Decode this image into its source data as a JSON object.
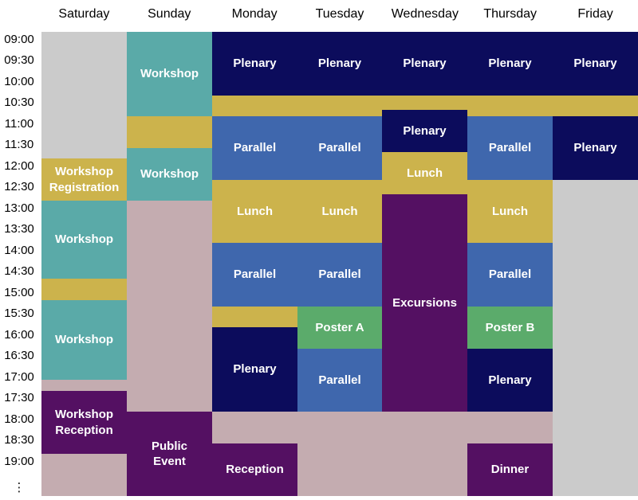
{
  "colors": {
    "plenary": "#0c0c5c",
    "parallel": "#3f67ad",
    "lunch": "#ccb34c",
    "workshop": "#5aaaa8",
    "poster": "#5bab6b",
    "purple": "#541062",
    "free": "#c4acb0",
    "empty": "#cbcbcb"
  },
  "days": [
    "Saturday",
    "Sunday",
    "Monday",
    "Tuesday",
    "Wednesday",
    "Thursday",
    "Friday"
  ],
  "times": [
    "09:00",
    "09:30",
    "10:00",
    "10:30",
    "11:00",
    "11:30",
    "12:00",
    "12:30",
    "13:00",
    "13:30",
    "14:00",
    "14:30",
    "15:00",
    "15:30",
    "16:00",
    "16:30",
    "17:00",
    "17:30",
    "18:00",
    "18:30",
    "19:00"
  ],
  "continuation": "⋮",
  "events": [
    {
      "day": 0,
      "start": 0,
      "end": 6,
      "type": "empty",
      "label": ""
    },
    {
      "day": 0,
      "start": 6,
      "end": 8,
      "type": "lunch",
      "label": "Workshop\nRegistration"
    },
    {
      "day": 0,
      "start": 8,
      "end": 11.7,
      "type": "workshop",
      "label": "Workshop"
    },
    {
      "day": 0,
      "start": 11.7,
      "end": 12.7,
      "type": "lunch",
      "label": ""
    },
    {
      "day": 0,
      "start": 12.7,
      "end": 16.5,
      "type": "workshop",
      "label": "Workshop"
    },
    {
      "day": 0,
      "start": 16.5,
      "end": 17,
      "type": "free",
      "label": ""
    },
    {
      "day": 0,
      "start": 17,
      "end": 20,
      "type": "purple",
      "label": "Workshop\nReception"
    },
    {
      "day": 0,
      "start": 20,
      "end": 22,
      "type": "free",
      "label": ""
    },
    {
      "day": 1,
      "start": 0,
      "end": 4,
      "type": "workshop",
      "label": "Workshop"
    },
    {
      "day": 1,
      "start": 4,
      "end": 5.5,
      "type": "lunch",
      "label": ""
    },
    {
      "day": 1,
      "start": 5.5,
      "end": 8,
      "type": "workshop",
      "label": "Workshop"
    },
    {
      "day": 1,
      "start": 8,
      "end": 18,
      "type": "free",
      "label": ""
    },
    {
      "day": 1,
      "start": 18,
      "end": 22,
      "type": "purple",
      "label": "Public\nEvent"
    },
    {
      "day": 2,
      "start": 0,
      "end": 3,
      "type": "plenary",
      "label": "Plenary"
    },
    {
      "day": 2,
      "start": 3,
      "end": 4,
      "type": "lunch",
      "label": ""
    },
    {
      "day": 2,
      "start": 4,
      "end": 7,
      "type": "parallel",
      "label": "Parallel"
    },
    {
      "day": 2,
      "start": 7,
      "end": 10,
      "type": "lunch",
      "label": "Lunch"
    },
    {
      "day": 2,
      "start": 10,
      "end": 13,
      "type": "parallel",
      "label": "Parallel"
    },
    {
      "day": 2,
      "start": 13,
      "end": 14,
      "type": "lunch",
      "label": ""
    },
    {
      "day": 2,
      "start": 14,
      "end": 18,
      "type": "plenary",
      "label": "Plenary"
    },
    {
      "day": 2,
      "start": 18,
      "end": 19.5,
      "type": "free",
      "label": ""
    },
    {
      "day": 2,
      "start": 19.5,
      "end": 22,
      "type": "purple",
      "label": "Reception"
    },
    {
      "day": 3,
      "start": 0,
      "end": 3,
      "type": "plenary",
      "label": "Plenary"
    },
    {
      "day": 3,
      "start": 3,
      "end": 4,
      "type": "lunch",
      "label": ""
    },
    {
      "day": 3,
      "start": 4,
      "end": 7,
      "type": "parallel",
      "label": "Parallel"
    },
    {
      "day": 3,
      "start": 7,
      "end": 10,
      "type": "lunch",
      "label": "Lunch"
    },
    {
      "day": 3,
      "start": 10,
      "end": 13,
      "type": "parallel",
      "label": "Parallel"
    },
    {
      "day": 3,
      "start": 13,
      "end": 15,
      "type": "poster",
      "label": "Poster A"
    },
    {
      "day": 3,
      "start": 15,
      "end": 18,
      "type": "parallel",
      "label": "Parallel"
    },
    {
      "day": 3,
      "start": 18,
      "end": 22,
      "type": "free",
      "label": ""
    },
    {
      "day": 4,
      "start": 0,
      "end": 3,
      "type": "plenary",
      "label": "Plenary"
    },
    {
      "day": 4,
      "start": 3,
      "end": 3.7,
      "type": "lunch",
      "label": ""
    },
    {
      "day": 4,
      "start": 3.7,
      "end": 5.7,
      "type": "plenary",
      "label": "Plenary"
    },
    {
      "day": 4,
      "start": 5.7,
      "end": 7.7,
      "type": "lunch",
      "label": "Lunch"
    },
    {
      "day": 4,
      "start": 7.7,
      "end": 18,
      "type": "purple",
      "label": "Excursions"
    },
    {
      "day": 4,
      "start": 18,
      "end": 22,
      "type": "free",
      "label": ""
    },
    {
      "day": 5,
      "start": 0,
      "end": 3,
      "type": "plenary",
      "label": "Plenary"
    },
    {
      "day": 5,
      "start": 3,
      "end": 4,
      "type": "lunch",
      "label": ""
    },
    {
      "day": 5,
      "start": 4,
      "end": 7,
      "type": "parallel",
      "label": "Parallel"
    },
    {
      "day": 5,
      "start": 7,
      "end": 10,
      "type": "lunch",
      "label": "Lunch"
    },
    {
      "day": 5,
      "start": 10,
      "end": 13,
      "type": "parallel",
      "label": "Parallel"
    },
    {
      "day": 5,
      "start": 13,
      "end": 15,
      "type": "poster",
      "label": "Poster B"
    },
    {
      "day": 5,
      "start": 15,
      "end": 18,
      "type": "plenary",
      "label": "Plenary"
    },
    {
      "day": 5,
      "start": 18,
      "end": 19.5,
      "type": "free",
      "label": ""
    },
    {
      "day": 5,
      "start": 19.5,
      "end": 22,
      "type": "purple",
      "label": "Dinner"
    },
    {
      "day": 6,
      "start": 0,
      "end": 3,
      "type": "plenary",
      "label": "Plenary"
    },
    {
      "day": 6,
      "start": 3,
      "end": 4,
      "type": "lunch",
      "label": ""
    },
    {
      "day": 6,
      "start": 4,
      "end": 7,
      "type": "plenary",
      "label": "Plenary"
    },
    {
      "day": 6,
      "start": 7,
      "end": 22,
      "type": "empty",
      "label": ""
    }
  ]
}
